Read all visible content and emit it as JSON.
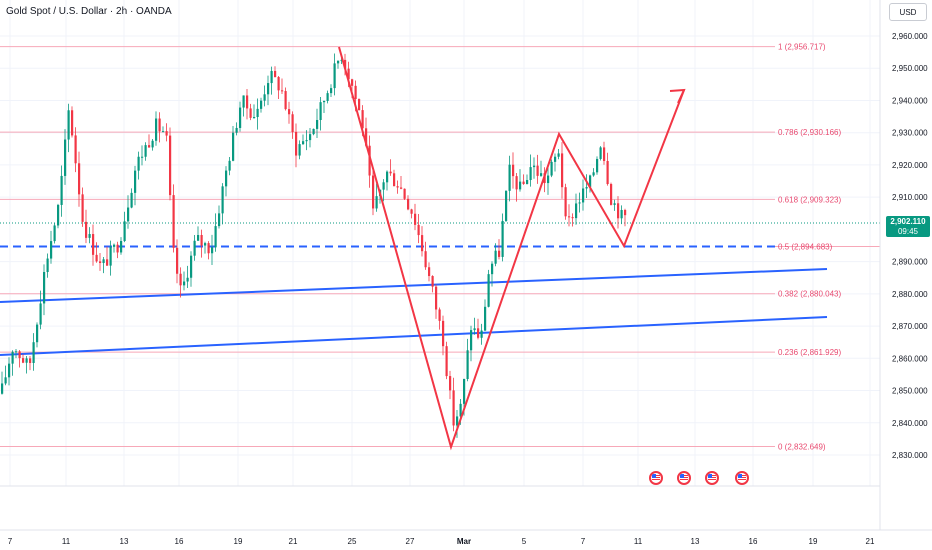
{
  "title": "Gold Spot / U.S. Dollar · 2h · OANDA",
  "currency_button": "USD",
  "current_price": {
    "value": "2,902.110",
    "countdown": "09:45"
  },
  "colors": {
    "fib_line": "#f7a8b8",
    "fib_text": "#e8496f",
    "up_candle": "#089981",
    "down_candle": "#f23645",
    "trendline": "#2962ff",
    "zigzag": "#f23645",
    "grid": "#f0f3fa"
  },
  "price_axis": {
    "ticks": [
      "2,960.000",
      "2,950.000",
      "2,940.000",
      "2,930.000",
      "2,920.000",
      "2,910.000",
      "2,890.000",
      "2,880.000",
      "2,870.000",
      "2,860.000",
      "2,850.000",
      "2,840.000",
      "2,830.000"
    ],
    "tick_values": [
      2960,
      2950,
      2940,
      2930,
      2920,
      2910,
      2890,
      2880,
      2870,
      2860,
      2850,
      2840,
      2830
    ]
  },
  "time_axis": {
    "labels": [
      "7",
      "11",
      "13",
      "16",
      "19",
      "21",
      "25",
      "27",
      "Mar",
      "5",
      "7",
      "11",
      "13",
      "16",
      "19",
      "21"
    ]
  },
  "fib_levels": [
    {
      "ratio": 1,
      "value": 2956.717,
      "label": "1 (2,956.717)"
    },
    {
      "ratio": 0.786,
      "value": 2930.166,
      "label": "0.786 (2,930.166)"
    },
    {
      "ratio": 0.618,
      "value": 2909.323,
      "label": "0.618 (2,909.323)"
    },
    {
      "ratio": 0.5,
      "value": 2894.683,
      "label": "0.5 (2,894.683)"
    },
    {
      "ratio": 0.382,
      "value": 2880.043,
      "label": "0.382 (2,880.043)"
    },
    {
      "ratio": 0.236,
      "value": 2861.929,
      "label": "0.236 (2,861.929)"
    },
    {
      "ratio": 0,
      "value": 2832.649,
      "label": "0 (2,832.649)"
    }
  ],
  "events": {
    "count": 4,
    "icon": "us-flag-icon"
  }
}
